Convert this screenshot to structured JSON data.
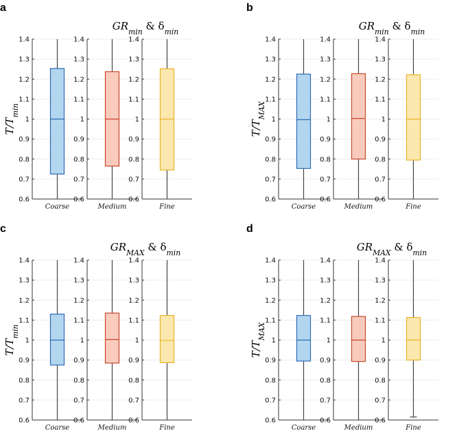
{
  "colors": {
    "coarse": {
      "fill": "#b3d6ef",
      "stroke": "#2d6bb3"
    },
    "medium": {
      "fill": "#f8cbbd",
      "stroke": "#c7472a"
    },
    "fine": {
      "fill": "#fbe8ae",
      "stroke": "#e8b32a"
    },
    "whisker": "#444444",
    "grid": "#ececec"
  },
  "chart_data": [
    {
      "type": "box",
      "panel": "a",
      "title": "GR_min & δ_min",
      "ylabel": "T/T_min",
      "ylim": [
        0.6,
        1.4
      ],
      "yticks": [
        "0.6",
        "0.7",
        "0.8",
        "0.9",
        "1",
        "1.1",
        "1.2",
        "1.3",
        "1.4"
      ],
      "boxes": [
        {
          "category": "Coarse",
          "min": 0.6,
          "q1": 0.725,
          "median": 1.0,
          "q3": 1.253,
          "max": 1.4
        },
        {
          "category": "Medium",
          "min": 0.6,
          "q1": 0.765,
          "median": 1.0,
          "q3": 1.237,
          "max": 1.4
        },
        {
          "category": "Fine",
          "min": 0.6,
          "q1": 0.745,
          "median": 1.0,
          "q3": 1.252,
          "max": 1.4
        }
      ]
    },
    {
      "type": "box",
      "panel": "b",
      "title": "GR_min & δ_min",
      "ylabel": "T/T_MAX",
      "ylim": [
        0.6,
        1.4
      ],
      "yticks": [
        "0.6",
        "0.7",
        "0.8",
        "0.9",
        "1",
        "1.1",
        "1.2",
        "1.3",
        "1.4"
      ],
      "boxes": [
        {
          "category": "Coarse",
          "min": 0.6,
          "q1": 0.753,
          "median": 0.997,
          "q3": 1.225,
          "max": 1.4
        },
        {
          "category": "Medium",
          "min": 0.6,
          "q1": 0.8,
          "median": 1.003,
          "q3": 1.227,
          "max": 1.4
        },
        {
          "category": "Fine",
          "min": 0.6,
          "q1": 0.795,
          "median": 1.0,
          "q3": 1.222,
          "max": 1.4
        }
      ]
    },
    {
      "type": "box",
      "panel": "c",
      "title": "GR_MAX & δ_min",
      "ylabel": "T/T_min",
      "ylim": [
        0.6,
        1.4
      ],
      "yticks": [
        "0.6",
        "0.7",
        "0.8",
        "0.9",
        "1",
        "1.1",
        "1.2",
        "1.3",
        "1.4"
      ],
      "boxes": [
        {
          "category": "Coarse",
          "min": 0.6,
          "q1": 0.875,
          "median": 1.0,
          "q3": 1.13,
          "max": 1.4
        },
        {
          "category": "Medium",
          "min": 0.6,
          "q1": 0.885,
          "median": 1.003,
          "q3": 1.135,
          "max": 1.4
        },
        {
          "category": "Fine",
          "min": 0.6,
          "q1": 0.887,
          "median": 0.998,
          "q3": 1.123,
          "max": 1.4
        }
      ]
    },
    {
      "type": "box",
      "panel": "d",
      "title": "GR_MAX & δ_min",
      "ylabel": "T/T_MAX",
      "ylim": [
        0.6,
        1.4
      ],
      "yticks": [
        "0.6",
        "0.7",
        "0.8",
        "0.9",
        "1",
        "1.1",
        "1.2",
        "1.3",
        "1.4"
      ],
      "boxes": [
        {
          "category": "Coarse",
          "min": 0.6,
          "q1": 0.895,
          "median": 1.0,
          "q3": 1.123,
          "max": 1.4
        },
        {
          "category": "Medium",
          "min": 0.6,
          "q1": 0.893,
          "median": 1.0,
          "q3": 1.118,
          "max": 1.4
        },
        {
          "category": "Fine",
          "min": 0.615,
          "q1": 0.9,
          "median": 1.0,
          "q3": 1.113,
          "max": 1.4
        }
      ]
    }
  ]
}
